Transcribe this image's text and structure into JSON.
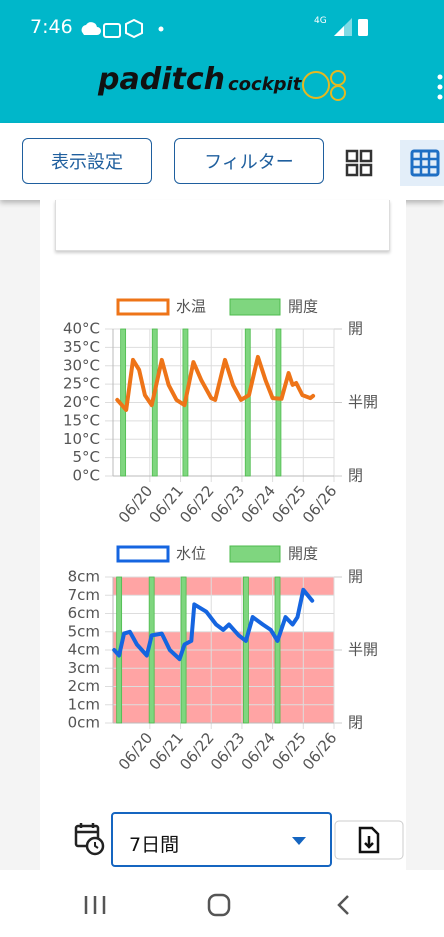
{
  "status_bar": {
    "time": "7:46",
    "network": "4G"
  },
  "header": {
    "logo": "paditch",
    "logo_sub": "cockpit"
  },
  "toolbar": {
    "buttons": [
      "表示設定",
      "フィルター"
    ]
  },
  "chart_data": [
    {
      "type": "line",
      "series": [
        {
          "name": "水温",
          "color": "#ee7418",
          "x": [
            18.94,
            19.23,
            19.45,
            19.65,
            19.84,
            20.06,
            20.39,
            20.61,
            20.87,
            21.13,
            21.42,
            21.68,
            22.0,
            22.13,
            22.45,
            22.71,
            22.97,
            23.23,
            23.52,
            23.77,
            24.0,
            24.29,
            24.52,
            24.65,
            24.77,
            24.97,
            25.23,
            25.32
          ],
          "values": [
            20.7,
            18.0,
            31.6,
            28.9,
            22.0,
            19.3,
            31.6,
            24.8,
            20.7,
            19.3,
            31.0,
            26.0,
            21.2,
            20.7,
            31.6,
            24.8,
            20.7,
            22.0,
            32.4,
            26.0,
            21.2,
            21.0,
            28.0,
            24.8,
            25.3,
            22.0,
            21.2,
            21.8
          ]
        },
        {
          "name": "開度",
          "type": "bar",
          "axis": "y2",
          "color": "#7fd67f",
          "x": [
            19.13,
            20.16,
            21.16,
            23.19,
            24.19
          ],
          "values": [
            100,
            100,
            100,
            100,
            100
          ]
        }
      ],
      "xlim": [
        18.8,
        26
      ],
      "xticks": [
        {
          "value": 20,
          "label": "06/20"
        },
        {
          "value": 21,
          "label": "06/21"
        },
        {
          "value": 22,
          "label": "06/22"
        },
        {
          "value": 23,
          "label": "06/23"
        },
        {
          "value": 24,
          "label": "06/24"
        },
        {
          "value": 25,
          "label": "06/25"
        },
        {
          "value": 26,
          "label": "06/26"
        }
      ],
      "ylim": [
        0,
        40
      ],
      "yticks": [
        {
          "value": 0,
          "label": "0°C"
        },
        {
          "value": 5,
          "label": "5°C"
        },
        {
          "value": 10,
          "label": "10°C"
        },
        {
          "value": 15,
          "label": "15°C"
        },
        {
          "value": 20,
          "label": "20°C"
        },
        {
          "value": 25,
          "label": "25°C"
        },
        {
          "value": 30,
          "label": "30°C"
        },
        {
          "value": 35,
          "label": "35°C"
        },
        {
          "value": 40,
          "label": "40°C"
        }
      ],
      "y2lim": [
        0,
        100
      ],
      "y2ticks": [
        {
          "value": 0,
          "label": "閉"
        },
        {
          "value": 50,
          "label": "半開"
        },
        {
          "value": 100,
          "label": "開"
        }
      ],
      "grid": true
    },
    {
      "type": "line",
      "series": [
        {
          "name": "水位",
          "color": "#1565e0",
          "x": [
            18.84,
            19.0,
            19.16,
            19.35,
            19.58,
            19.9,
            20.06,
            20.39,
            20.65,
            20.97,
            21.13,
            21.35,
            21.45,
            21.84,
            22.16,
            22.39,
            22.58,
            22.9,
            23.13,
            23.35,
            23.68,
            23.94,
            24.16,
            24.42,
            24.65,
            24.81,
            25.0,
            25.29
          ],
          "values": [
            4.0,
            3.7,
            4.9,
            5.0,
            4.3,
            3.7,
            4.8,
            4.9,
            4.0,
            3.5,
            4.3,
            4.5,
            6.5,
            6.1,
            5.4,
            5.1,
            5.4,
            4.8,
            4.5,
            5.8,
            5.4,
            5.1,
            4.5,
            5.8,
            5.4,
            5.8,
            7.3,
            6.7
          ]
        },
        {
          "name": "開度",
          "type": "bar",
          "axis": "y2",
          "color": "#7fd67f",
          "x": [
            19.0,
            20.06,
            21.1,
            23.13,
            24.16
          ],
          "values": [
            100,
            100,
            100,
            100,
            100
          ]
        }
      ],
      "bands": [
        {
          "from": 0,
          "to": 5
        },
        {
          "from": 7,
          "to": 8
        }
      ],
      "band_color": "#ff9a9a",
      "xlim": [
        18.8,
        26
      ],
      "xticks": [
        {
          "value": 20,
          "label": "06/20"
        },
        {
          "value": 21,
          "label": "06/21"
        },
        {
          "value": 22,
          "label": "06/22"
        },
        {
          "value": 23,
          "label": "06/23"
        },
        {
          "value": 24,
          "label": "06/24"
        },
        {
          "value": 25,
          "label": "06/25"
        },
        {
          "value": 26,
          "label": "06/26"
        }
      ],
      "ylim": [
        0,
        8
      ],
      "yticks": [
        {
          "value": 0,
          "label": "0cm"
        },
        {
          "value": 1,
          "label": "1cm"
        },
        {
          "value": 2,
          "label": "2cm"
        },
        {
          "value": 3,
          "label": "3cm"
        },
        {
          "value": 4,
          "label": "4cm"
        },
        {
          "value": 5,
          "label": "5cm"
        },
        {
          "value": 6,
          "label": "6cm"
        },
        {
          "value": 7,
          "label": "7cm"
        },
        {
          "value": 8,
          "label": "8cm"
        }
      ],
      "y2lim": [
        0,
        100
      ],
      "y2ticks": [
        {
          "value": 0,
          "label": "閉"
        },
        {
          "value": 50,
          "label": "半開"
        },
        {
          "value": 100,
          "label": "開"
        }
      ],
      "grid": true
    }
  ],
  "footer": {
    "period": "7日間"
  }
}
